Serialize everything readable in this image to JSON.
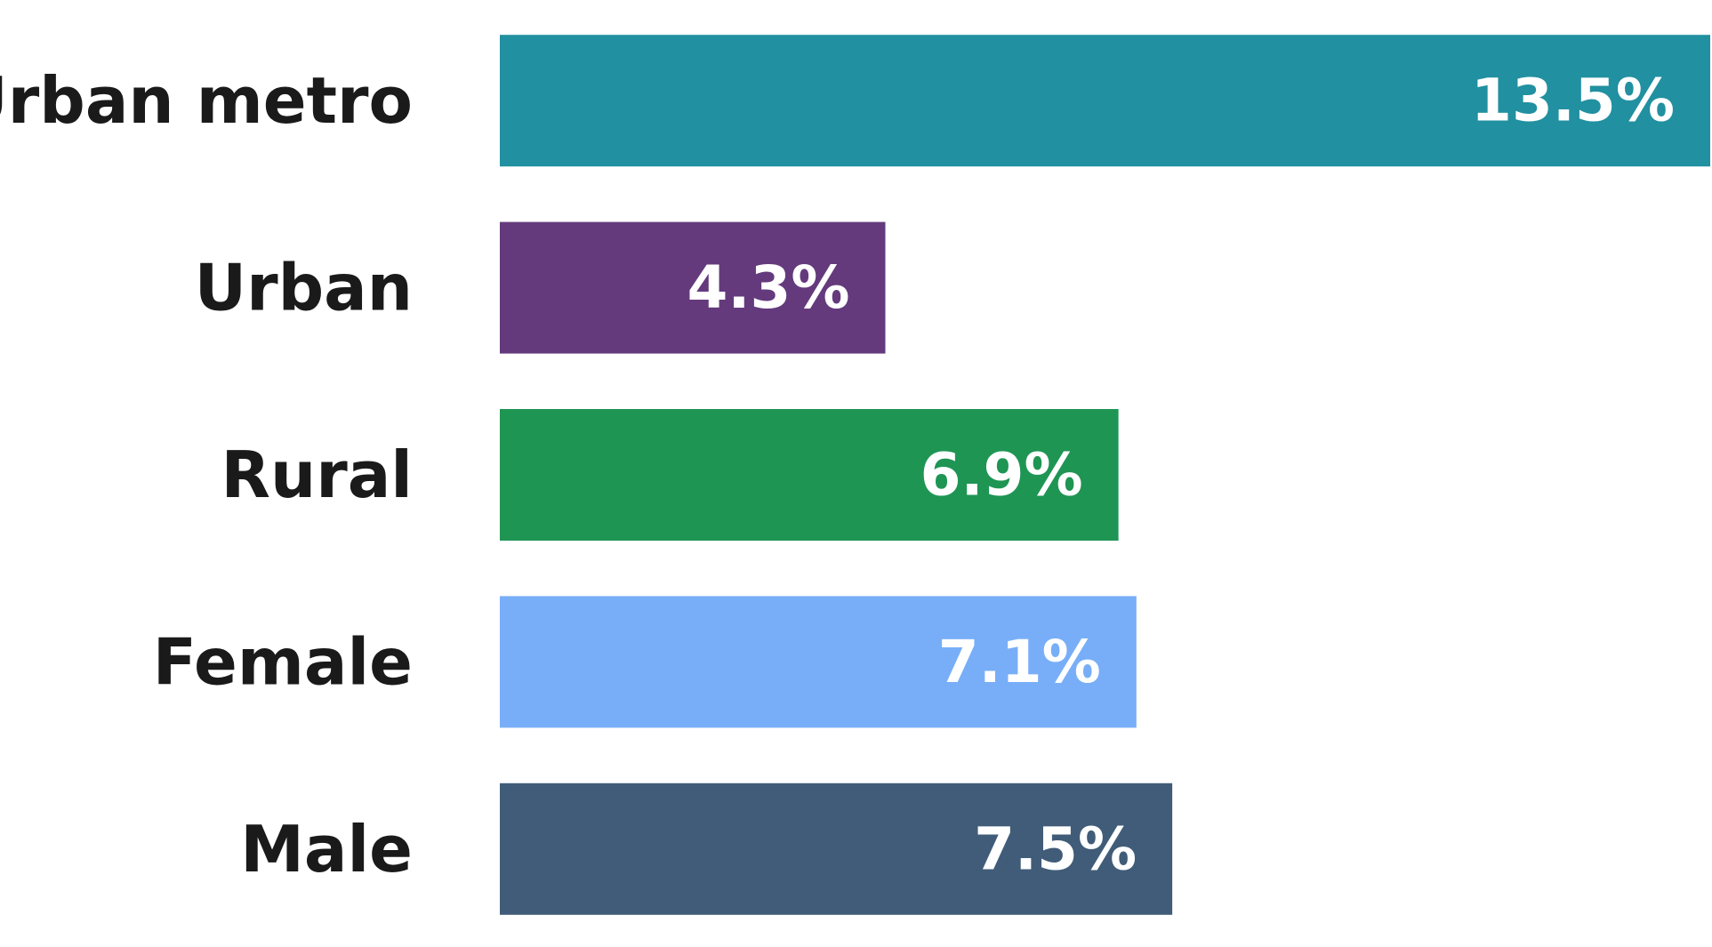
{
  "chart_data": {
    "type": "bar",
    "orientation": "horizontal",
    "categories": [
      "Urban metro",
      "Urban",
      "Rural",
      "Female",
      "Male"
    ],
    "values": [
      13.5,
      4.3,
      6.9,
      7.1,
      7.5
    ],
    "value_labels": [
      "13.5%",
      "4.3%",
      "6.9%",
      "7.1%",
      "7.5%"
    ],
    "colors": [
      "#2190a0",
      "#643a7d",
      "#1f9554",
      "#78aef8",
      "#405c78"
    ]
  }
}
